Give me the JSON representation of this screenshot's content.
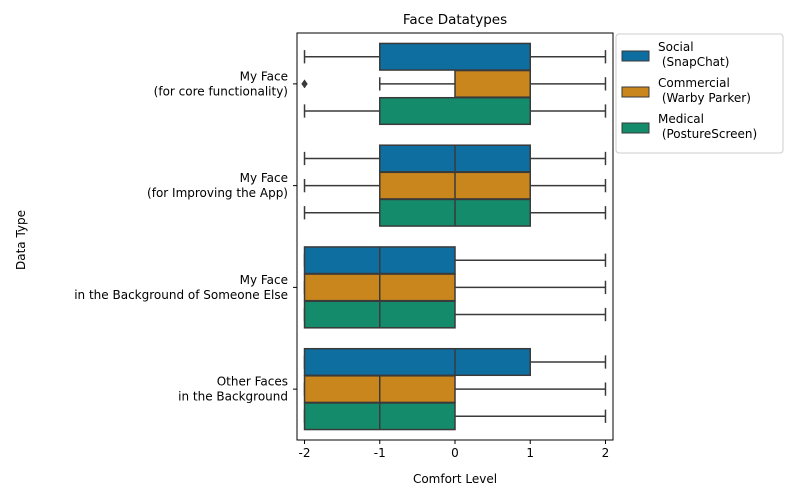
{
  "chart_data": {
    "type": "box",
    "orientation": "horizontal",
    "title": "Face Datatypes",
    "xlabel": "Comfort Level",
    "ylabel": "Data Type",
    "xlim": [
      -2.1,
      2.1
    ],
    "xticks": [
      -2,
      -1,
      0,
      1,
      2
    ],
    "xtick_labels": [
      "-2",
      "-1",
      "0",
      "1",
      "2"
    ],
    "grid": false,
    "legend_placement": "outside-top-right",
    "categories": [
      [
        "My Face",
        "(for core functionality)"
      ],
      [
        "My Face",
        "(for Improving the App)"
      ],
      [
        "My Face",
        "in the Background of Someone Else"
      ],
      [
        "Other Faces",
        "in the Background"
      ]
    ],
    "series": [
      {
        "name_lines": [
          "Social",
          " (SnapChat)"
        ],
        "color": "#0e6ea0",
        "boxes": [
          {
            "whislo": -2,
            "q1": -1,
            "med": 1,
            "q3": 1,
            "whishi": 2,
            "fliers": []
          },
          {
            "whislo": -2,
            "q1": -1,
            "med": 0,
            "q3": 1,
            "whishi": 2,
            "fliers": []
          },
          {
            "whislo": -2,
            "q1": -2,
            "med": -1,
            "q3": 0,
            "whishi": 2,
            "fliers": []
          },
          {
            "whislo": -2,
            "q1": -2,
            "med": 0,
            "q3": 1,
            "whishi": 2,
            "fliers": []
          }
        ]
      },
      {
        "name_lines": [
          "Commercial",
          " (Warby Parker)"
        ],
        "color": "#c8861c",
        "boxes": [
          {
            "whislo": -1,
            "q1": 0,
            "med": 1,
            "q3": 1,
            "whishi": 2,
            "fliers": [
              -2,
              -2
            ]
          },
          {
            "whislo": -2,
            "q1": -1,
            "med": 0,
            "q3": 1,
            "whishi": 2,
            "fliers": []
          },
          {
            "whislo": -2,
            "q1": -2,
            "med": -1,
            "q3": 0,
            "whishi": 2,
            "fliers": []
          },
          {
            "whislo": -2,
            "q1": -2,
            "med": -1,
            "q3": 0,
            "whishi": 2,
            "fliers": []
          }
        ]
      },
      {
        "name_lines": [
          "Medical",
          " (PostureScreen)"
        ],
        "color": "#148c6c",
        "boxes": [
          {
            "whislo": -2,
            "q1": -1,
            "med": 1,
            "q3": 1,
            "whishi": 2,
            "fliers": []
          },
          {
            "whislo": -2,
            "q1": -1,
            "med": 0,
            "q3": 1,
            "whishi": 2,
            "fliers": []
          },
          {
            "whislo": -2,
            "q1": -2,
            "med": -1,
            "q3": 0,
            "whishi": 2,
            "fliers": []
          },
          {
            "whislo": -2,
            "q1": -2,
            "med": -1,
            "q3": 0,
            "whishi": 2,
            "fliers": []
          }
        ]
      }
    ]
  }
}
